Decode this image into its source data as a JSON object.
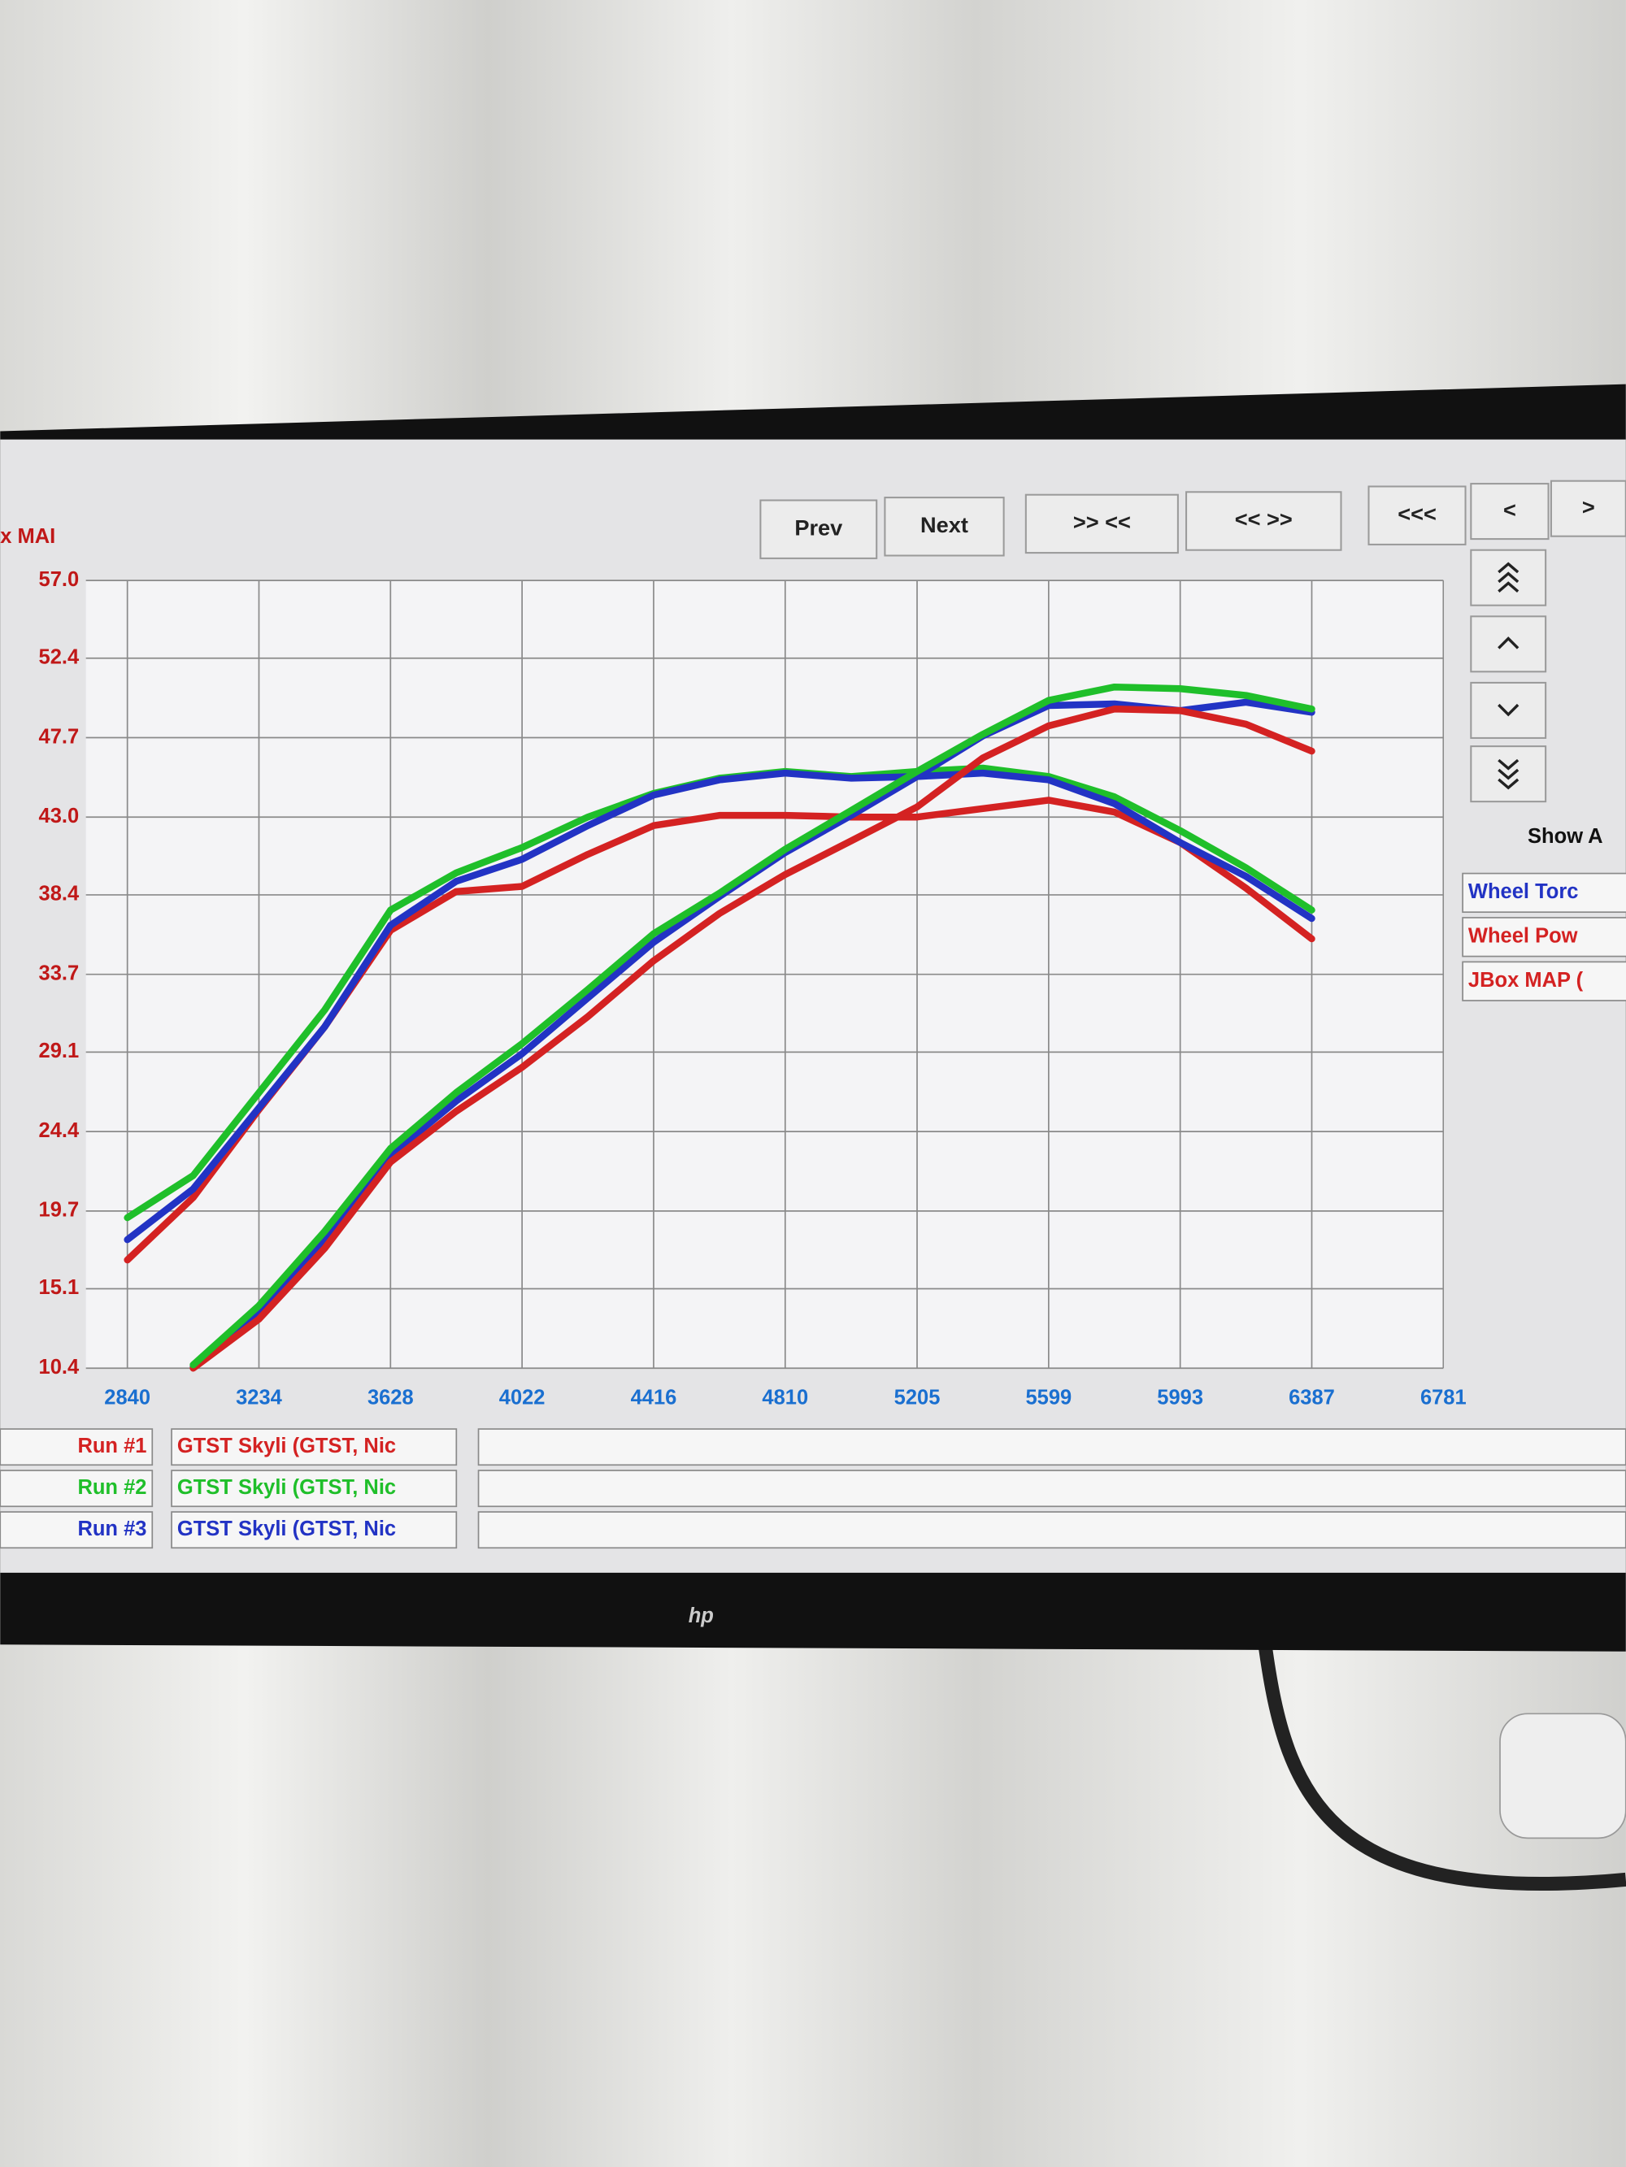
{
  "chart_data": {
    "type": "line",
    "y_label": "x MAI",
    "x": [
      2840,
      3037,
      3234,
      3431,
      3628,
      3825,
      4022,
      4219,
      4416,
      4613,
      4810,
      5008,
      5205,
      5402,
      5599,
      5796,
      5993,
      6190,
      6387
    ],
    "xlim": [
      2840,
      6781
    ],
    "xticks": [
      2840,
      3234,
      3628,
      4022,
      4416,
      4810,
      5205,
      5599,
      5993,
      6387,
      6781
    ],
    "ylim": [
      10.4,
      57.0
    ],
    "yticks": [
      {
        "value": 10.4,
        "label": "10.4"
      },
      15.1,
      19.7,
      24.4,
      29.1,
      33.7,
      38.4,
      {
        "value": 43.0,
        "label": "43.0"
      },
      47.7,
      52.4,
      {
        "value": 57.0,
        "label": "57.0"
      }
    ],
    "grid": true,
    "series": [
      {
        "name": "Run #1",
        "color": "#d42222",
        "values": [
          16.8,
          20.5,
          25.7,
          30.6,
          36.3,
          38.6,
          38.9,
          40.8,
          42.5,
          43.1,
          43.1,
          43.0,
          43.0,
          43.5,
          44.0,
          43.3,
          41.5,
          38.8,
          35.8
        ]
      },
      {
        "name": "Run #2",
        "color": "#1fbf2a",
        "values": [
          19.3,
          21.8,
          26.7,
          31.6,
          37.5,
          39.7,
          41.2,
          43.0,
          44.4,
          45.3,
          45.7,
          45.4,
          45.7,
          45.9,
          45.4,
          44.2,
          42.2,
          40.0,
          37.5
        ]
      },
      {
        "name": "Run #3",
        "color": "#2233c4",
        "values": [
          18.0,
          21.0,
          25.8,
          30.6,
          36.6,
          39.2,
          40.5,
          42.5,
          44.3,
          45.2,
          45.6,
          45.3,
          45.4,
          45.6,
          45.2,
          43.8,
          41.5,
          39.5,
          37.0
        ]
      },
      {
        "color": "#2233c4",
        "values": [
          null,
          10.5,
          13.7,
          18.0,
          23.0,
          26.2,
          29.0,
          32.3,
          35.6,
          38.3,
          40.9,
          43.1,
          45.4,
          47.8,
          49.6,
          49.7,
          49.3,
          49.8,
          49.2
        ]
      },
      {
        "color": "#d42222",
        "values": [
          null,
          10.4,
          13.3,
          17.5,
          22.6,
          25.6,
          28.2,
          31.2,
          34.5,
          37.3,
          39.6,
          41.6,
          43.6,
          46.5,
          48.4,
          49.4,
          49.3,
          48.5,
          46.9
        ]
      },
      {
        "color": "#1fbf2a",
        "values": [
          null,
          10.6,
          14.1,
          18.5,
          23.4,
          26.7,
          29.6,
          32.8,
          36.1,
          38.5,
          41.1,
          43.4,
          45.7,
          47.9,
          49.9,
          50.7,
          50.6,
          50.2,
          49.4
        ]
      }
    ]
  },
  "ui": {
    "buttons": [
      "Prev",
      "Next",
      ">> <<",
      "<< >>",
      "<<<",
      "<",
      ">"
    ],
    "show_label": "Show A",
    "channels": [
      "Wheel Torc",
      "Wheel Pow",
      "JBox MAP ("
    ],
    "run_names": [
      "GTST Skyli (GTST, Nic",
      "GTST Skyli (GTST, Nic",
      "GTST Skyli (GTST, Nic"
    ],
    "logo": "hp"
  }
}
